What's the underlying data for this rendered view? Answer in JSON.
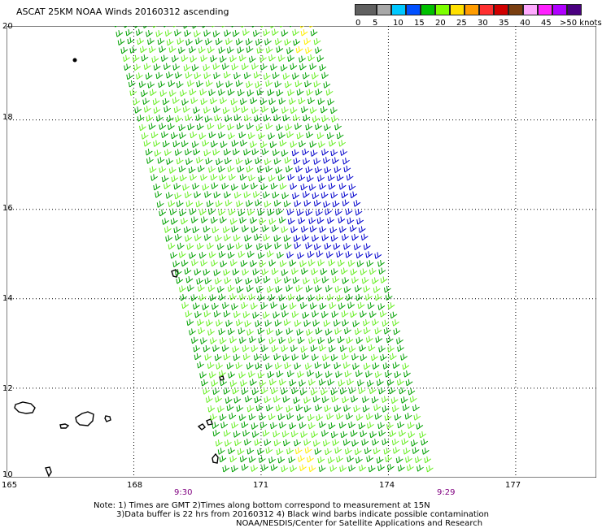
{
  "title": "ASCAT 25KM NOAA Winds 20160312 ascending",
  "legend": {
    "swatches": [
      {
        "color": "#606060"
      },
      {
        "color": "#a8a8a8"
      },
      {
        "color": "#00c8ff"
      },
      {
        "color": "#0050ff"
      },
      {
        "color": "#00c000"
      },
      {
        "color": "#7cff00"
      },
      {
        "color": "#ffe000"
      },
      {
        "color": "#ff9c00"
      },
      {
        "color": "#ff3030"
      },
      {
        "color": "#d00000"
      },
      {
        "color": "#7a3e10"
      },
      {
        "color": "#ffaaff"
      },
      {
        "color": "#ff20ff"
      },
      {
        "color": "#b000ff"
      },
      {
        "color": "#4a0080"
      }
    ],
    "labels": [
      "0",
      "5",
      "10",
      "15",
      "20",
      "25",
      "30",
      "35",
      "40",
      "45",
      ">50 knots"
    ]
  },
  "map": {
    "lat_labels": [
      "20",
      "18",
      "16",
      "14",
      "12",
      "10"
    ],
    "lon_labels": [
      "165",
      "168",
      "171",
      "174",
      "177"
    ],
    "time_labels": [
      "9:30",
      "9:29"
    ],
    "lon_range": [
      165,
      178.9
    ],
    "lat_range": [
      10,
      20.1
    ],
    "wind_colors": {
      "green_dark": "#00a000",
      "green_light": "#66ee22",
      "blue": "#0000cc",
      "yellow": "#ffee00",
      "land": "#000000"
    }
  },
  "notes": [
    "Note: 1) Times are GMT 2)Times along bottom correspond to measurement at 15N",
    "3)Data buffer is 22 hrs from 20160312 4) Black wind barbs indicate possible contamination",
    "NOAA/NESDIS/Center for Satellite Applications and Research"
  ]
}
